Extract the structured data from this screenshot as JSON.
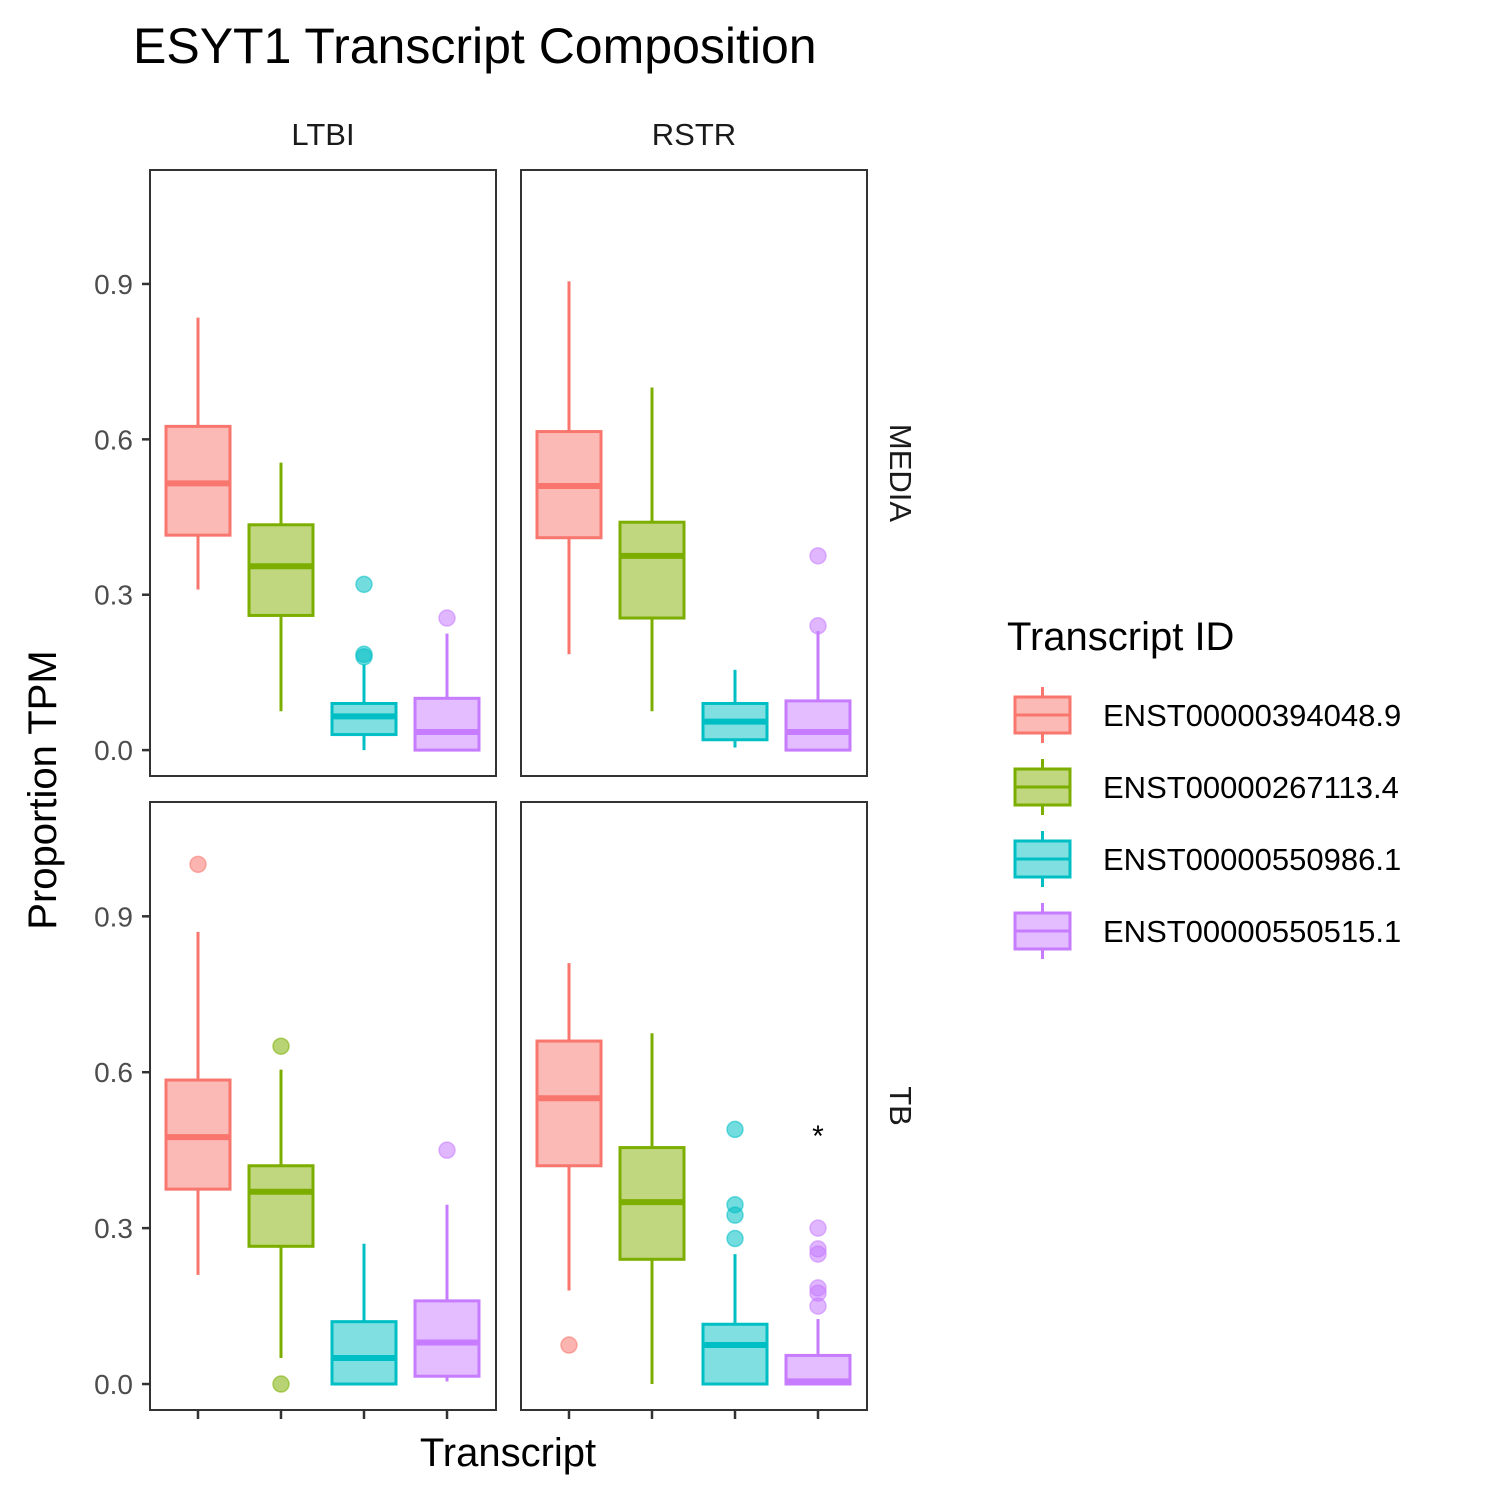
{
  "chart_data": {
    "type": "box",
    "title": "ESYT1 Transcript Composition",
    "xlabel": "Transcript",
    "ylabel": "Proportion TPM",
    "ylim": [
      -0.05,
      1.12
    ],
    "yticks": [
      0.0,
      0.3,
      0.6,
      0.9
    ],
    "ytick_labels": [
      "0.0",
      "0.3",
      "0.6",
      "0.9"
    ],
    "col_facets": [
      "LTBI",
      "RSTR"
    ],
    "row_facets": [
      "MEDIA",
      "TB"
    ],
    "legend": {
      "title": "Transcript ID",
      "position": "right",
      "items": [
        {
          "label": "ENST00000394048.9",
          "color": "#F8766D",
          "fill": "#FBBAB6"
        },
        {
          "label": "ENST00000267113.4",
          "color": "#7CAE00",
          "fill": "#C0D77F"
        },
        {
          "label": "ENST00000550986.1",
          "color": "#00BFC4",
          "fill": "#7FDFE1"
        },
        {
          "label": "ENST00000550515.1",
          "color": "#C77CFF",
          "fill": "#E3BDFF"
        }
      ]
    },
    "panels": [
      {
        "col": "LTBI",
        "row": "MEDIA",
        "boxes": [
          {
            "transcript": "ENST00000394048.9",
            "whisker_low": 0.31,
            "q1": 0.415,
            "median": 0.515,
            "q3": 0.625,
            "whisker_high": 0.835,
            "outliers": []
          },
          {
            "transcript": "ENST00000267113.4",
            "whisker_low": 0.075,
            "q1": 0.26,
            "median": 0.355,
            "q3": 0.435,
            "whisker_high": 0.555,
            "outliers": []
          },
          {
            "transcript": "ENST00000550986.1",
            "whisker_low": 0.0,
            "q1": 0.03,
            "median": 0.065,
            "q3": 0.09,
            "whisker_high": 0.165,
            "outliers": [
              0.32,
              0.185,
              0.18
            ]
          },
          {
            "transcript": "ENST00000550515.1",
            "whisker_low": 0.0,
            "q1": 0.0,
            "median": 0.035,
            "q3": 0.1,
            "whisker_high": 0.225,
            "outliers": [
              0.255
            ]
          }
        ]
      },
      {
        "col": "RSTR",
        "row": "MEDIA",
        "boxes": [
          {
            "transcript": "ENST00000394048.9",
            "whisker_low": 0.185,
            "q1": 0.41,
            "median": 0.51,
            "q3": 0.615,
            "whisker_high": 0.905,
            "outliers": []
          },
          {
            "transcript": "ENST00000267113.4",
            "whisker_low": 0.075,
            "q1": 0.255,
            "median": 0.375,
            "q3": 0.44,
            "whisker_high": 0.7,
            "outliers": []
          },
          {
            "transcript": "ENST00000550986.1",
            "whisker_low": 0.005,
            "q1": 0.02,
            "median": 0.055,
            "q3": 0.09,
            "whisker_high": 0.155,
            "outliers": []
          },
          {
            "transcript": "ENST00000550515.1",
            "whisker_low": 0.0,
            "q1": 0.0,
            "median": 0.035,
            "q3": 0.095,
            "whisker_high": 0.23,
            "outliers": [
              0.375,
              0.24
            ]
          }
        ]
      },
      {
        "col": "LTBI",
        "row": "TB",
        "boxes": [
          {
            "transcript": "ENST00000394048.9",
            "whisker_low": 0.21,
            "q1": 0.375,
            "median": 0.475,
            "q3": 0.585,
            "whisker_high": 0.87,
            "outliers": [
              1.0
            ]
          },
          {
            "transcript": "ENST00000267113.4",
            "whisker_low": 0.05,
            "q1": 0.265,
            "median": 0.37,
            "q3": 0.42,
            "whisker_high": 0.605,
            "outliers": [
              0.65,
              0.0
            ]
          },
          {
            "transcript": "ENST00000550986.1",
            "whisker_low": 0.0,
            "q1": 0.0,
            "median": 0.05,
            "q3": 0.12,
            "whisker_high": 0.27,
            "outliers": []
          },
          {
            "transcript": "ENST00000550515.1",
            "whisker_low": 0.005,
            "q1": 0.015,
            "median": 0.08,
            "q3": 0.16,
            "whisker_high": 0.345,
            "outliers": [
              0.45
            ]
          }
        ]
      },
      {
        "col": "RSTR",
        "row": "TB",
        "annotation": {
          "text": "*",
          "transcript": "ENST00000550515.1",
          "y": 0.5
        },
        "boxes": [
          {
            "transcript": "ENST00000394048.9",
            "whisker_low": 0.18,
            "q1": 0.42,
            "median": 0.55,
            "q3": 0.66,
            "whisker_high": 0.81,
            "outliers": [
              0.075
            ]
          },
          {
            "transcript": "ENST00000267113.4",
            "whisker_low": 0.0,
            "q1": 0.24,
            "median": 0.35,
            "q3": 0.455,
            "whisker_high": 0.675,
            "outliers": []
          },
          {
            "transcript": "ENST00000550986.1",
            "whisker_low": 0.0,
            "q1": 0.0,
            "median": 0.075,
            "q3": 0.115,
            "whisker_high": 0.25,
            "outliers": [
              0.49,
              0.345,
              0.325,
              0.28
            ]
          },
          {
            "transcript": "ENST00000550515.1",
            "whisker_low": 0.0,
            "q1": 0.0,
            "median": 0.005,
            "q3": 0.055,
            "whisker_high": 0.125,
            "outliers": [
              0.3,
              0.26,
              0.25,
              0.185,
              0.175,
              0.15
            ]
          }
        ]
      }
    ]
  }
}
